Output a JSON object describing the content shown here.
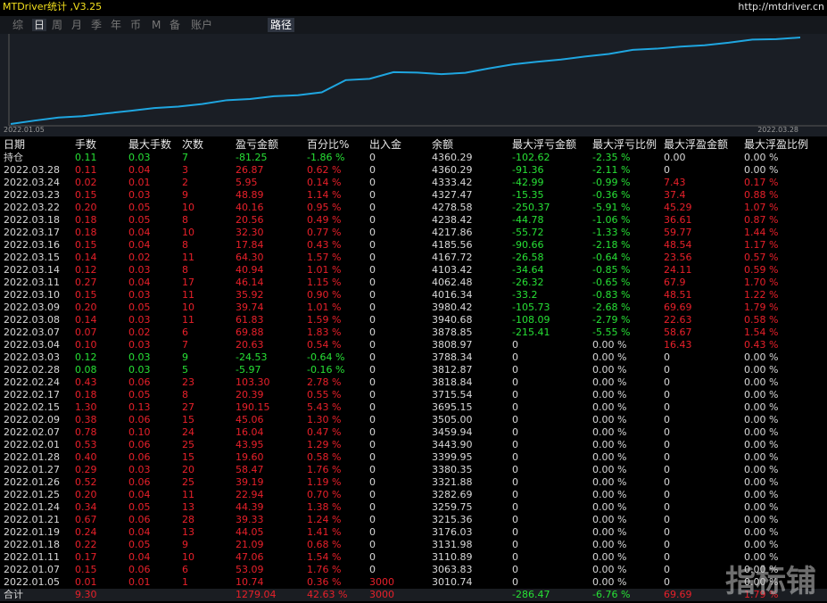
{
  "header": {
    "title": "MTDriver统计 ,V3.25",
    "url": "http://mtdriver.cn"
  },
  "tabs": [
    "综",
    "日",
    "周",
    "月",
    "季",
    "年",
    "币",
    "M",
    "备",
    "账户"
  ],
  "active_tab": "路径",
  "chart": {
    "start_label": "2022.01.05",
    "end_label": "2022.03.28"
  },
  "table": {
    "columns": [
      "日期",
      "手数",
      "最大手数",
      "次数",
      "盈亏金额",
      "百分比%",
      "出入金",
      "余额",
      "最大浮亏金额",
      "最大浮亏比例",
      "最大浮盈金额",
      "最大浮盈比例"
    ],
    "rows": [
      [
        "持仓",
        "0.11",
        "0.03",
        "7",
        "-81.25",
        "-1.86 %",
        "0",
        "4360.29",
        "-102.62",
        "-2.35 %",
        "0.00",
        "0.00 %"
      ],
      [
        "2022.03.28",
        "0.11",
        "0.04",
        "3",
        "26.87",
        "0.62 %",
        "0",
        "4360.29",
        "-91.36",
        "-2.11 %",
        "0",
        "0.00 %"
      ],
      [
        "2022.03.24",
        "0.02",
        "0.01",
        "2",
        "5.95",
        "0.14 %",
        "0",
        "4333.42",
        "-42.99",
        "-0.99 %",
        "7.43",
        "0.17 %"
      ],
      [
        "2022.03.23",
        "0.15",
        "0.03",
        "9",
        "48.89",
        "1.14 %",
        "0",
        "4327.47",
        "-15.35",
        "-0.36 %",
        "37.4",
        "0.88 %"
      ],
      [
        "2022.03.22",
        "0.20",
        "0.05",
        "10",
        "40.16",
        "0.95 %",
        "0",
        "4278.58",
        "-250.37",
        "-5.91 %",
        "45.29",
        "1.07 %"
      ],
      [
        "2022.03.18",
        "0.18",
        "0.05",
        "8",
        "20.56",
        "0.49 %",
        "0",
        "4238.42",
        "-44.78",
        "-1.06 %",
        "36.61",
        "0.87 %"
      ],
      [
        "2022.03.17",
        "0.18",
        "0.04",
        "10",
        "32.30",
        "0.77 %",
        "0",
        "4217.86",
        "-55.72",
        "-1.33 %",
        "59.77",
        "1.44 %"
      ],
      [
        "2022.03.16",
        "0.15",
        "0.04",
        "8",
        "17.84",
        "0.43 %",
        "0",
        "4185.56",
        "-90.66",
        "-2.18 %",
        "48.54",
        "1.17 %"
      ],
      [
        "2022.03.15",
        "0.14",
        "0.02",
        "11",
        "64.30",
        "1.57 %",
        "0",
        "4167.72",
        "-26.58",
        "-0.64 %",
        "23.56",
        "0.57 %"
      ],
      [
        "2022.03.14",
        "0.12",
        "0.03",
        "8",
        "40.94",
        "1.01 %",
        "0",
        "4103.42",
        "-34.64",
        "-0.85 %",
        "24.11",
        "0.59 %"
      ],
      [
        "2022.03.11",
        "0.27",
        "0.04",
        "17",
        "46.14",
        "1.15 %",
        "0",
        "4062.48",
        "-26.32",
        "-0.65 %",
        "67.9",
        "1.70 %"
      ],
      [
        "2022.03.10",
        "0.15",
        "0.03",
        "11",
        "35.92",
        "0.90 %",
        "0",
        "4016.34",
        "-33.2",
        "-0.83 %",
        "48.51",
        "1.22 %"
      ],
      [
        "2022.03.09",
        "0.20",
        "0.05",
        "10",
        "39.74",
        "1.01 %",
        "0",
        "3980.42",
        "-105.73",
        "-2.68 %",
        "69.69",
        "1.79 %"
      ],
      [
        "2022.03.08",
        "0.14",
        "0.03",
        "11",
        "61.83",
        "1.59 %",
        "0",
        "3940.68",
        "-108.09",
        "-2.79 %",
        "22.63",
        "0.58 %"
      ],
      [
        "2022.03.07",
        "0.07",
        "0.02",
        "6",
        "69.88",
        "1.83 %",
        "0",
        "3878.85",
        "-215.41",
        "-5.55 %",
        "58.67",
        "1.54 %"
      ],
      [
        "2022.03.04",
        "0.10",
        "0.03",
        "7",
        "20.63",
        "0.54 %",
        "0",
        "3808.97",
        "0",
        "0.00 %",
        "16.43",
        "0.43 %"
      ],
      [
        "2022.03.03",
        "0.12",
        "0.03",
        "9",
        "-24.53",
        "-0.64 %",
        "0",
        "3788.34",
        "0",
        "0.00 %",
        "0",
        "0.00 %"
      ],
      [
        "2022.02.28",
        "0.08",
        "0.03",
        "5",
        "-5.97",
        "-0.16 %",
        "0",
        "3812.87",
        "0",
        "0.00 %",
        "0",
        "0.00 %"
      ],
      [
        "2022.02.24",
        "0.43",
        "0.06",
        "23",
        "103.30",
        "2.78 %",
        "0",
        "3818.84",
        "0",
        "0.00 %",
        "0",
        "0.00 %"
      ],
      [
        "2022.02.17",
        "0.18",
        "0.05",
        "8",
        "20.39",
        "0.55 %",
        "0",
        "3715.54",
        "0",
        "0.00 %",
        "0",
        "0.00 %"
      ],
      [
        "2022.02.15",
        "1.30",
        "0.13",
        "27",
        "190.15",
        "5.43 %",
        "0",
        "3695.15",
        "0",
        "0.00 %",
        "0",
        "0.00 %"
      ],
      [
        "2022.02.09",
        "0.38",
        "0.06",
        "15",
        "45.06",
        "1.30 %",
        "0",
        "3505.00",
        "0",
        "0.00 %",
        "0",
        "0.00 %"
      ],
      [
        "2022.02.07",
        "0.78",
        "0.10",
        "24",
        "16.04",
        "0.47 %",
        "0",
        "3459.94",
        "0",
        "0.00 %",
        "0",
        "0.00 %"
      ],
      [
        "2022.02.01",
        "0.53",
        "0.06",
        "25",
        "43.95",
        "1.29 %",
        "0",
        "3443.90",
        "0",
        "0.00 %",
        "0",
        "0.00 %"
      ],
      [
        "2022.01.28",
        "0.40",
        "0.06",
        "15",
        "19.60",
        "0.58 %",
        "0",
        "3399.95",
        "0",
        "0.00 %",
        "0",
        "0.00 %"
      ],
      [
        "2022.01.27",
        "0.29",
        "0.03",
        "20",
        "58.47",
        "1.76 %",
        "0",
        "3380.35",
        "0",
        "0.00 %",
        "0",
        "0.00 %"
      ],
      [
        "2022.01.26",
        "0.52",
        "0.06",
        "25",
        "39.19",
        "1.19 %",
        "0",
        "3321.88",
        "0",
        "0.00 %",
        "0",
        "0.00 %"
      ],
      [
        "2022.01.25",
        "0.20",
        "0.04",
        "11",
        "22.94",
        "0.70 %",
        "0",
        "3282.69",
        "0",
        "0.00 %",
        "0",
        "0.00 %"
      ],
      [
        "2022.01.24",
        "0.34",
        "0.05",
        "13",
        "44.39",
        "1.38 %",
        "0",
        "3259.75",
        "0",
        "0.00 %",
        "0",
        "0.00 %"
      ],
      [
        "2022.01.21",
        "0.67",
        "0.06",
        "28",
        "39.33",
        "1.24 %",
        "0",
        "3215.36",
        "0",
        "0.00 %",
        "0",
        "0.00 %"
      ],
      [
        "2022.01.19",
        "0.24",
        "0.04",
        "13",
        "44.05",
        "1.41 %",
        "0",
        "3176.03",
        "0",
        "0.00 %",
        "0",
        "0.00 %"
      ],
      [
        "2022.01.18",
        "0.22",
        "0.05",
        "9",
        "21.09",
        "0.68 %",
        "0",
        "3131.98",
        "0",
        "0.00 %",
        "0",
        "0.00 %"
      ],
      [
        "2022.01.11",
        "0.17",
        "0.04",
        "10",
        "47.06",
        "1.54 %",
        "0",
        "3110.89",
        "0",
        "0.00 %",
        "0",
        "0.00 %"
      ],
      [
        "2022.01.07",
        "0.15",
        "0.06",
        "6",
        "53.09",
        "1.76 %",
        "0",
        "3063.83",
        "0",
        "0.00 %",
        "0",
        "0.00 %"
      ],
      [
        "2022.01.05",
        "0.01",
        "0.01",
        "1",
        "10.74",
        "0.36 %",
        "3000",
        "3010.74",
        "0",
        "0.00 %",
        "0",
        "0.00 %"
      ]
    ],
    "total": [
      "合计",
      "9.30",
      "",
      "",
      "1279.04",
      "42.63 %",
      "3000",
      "",
      "-286.47",
      "-6.76 %",
      "69.69",
      "1.79 %"
    ]
  },
  "watermark": "指标铺"
}
